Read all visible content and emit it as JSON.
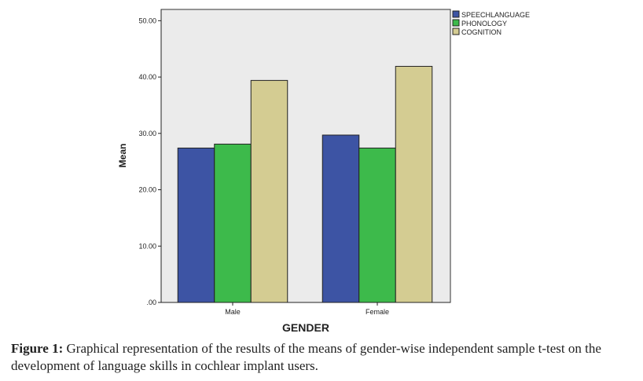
{
  "chart_data": {
    "type": "bar",
    "categories": [
      "Male",
      "Female"
    ],
    "series": [
      {
        "name": "SPEECHLANGUAGE",
        "values": [
          27.4,
          29.7
        ]
      },
      {
        "name": "PHONOLOGY",
        "values": [
          28.1,
          27.4
        ]
      },
      {
        "name": "COGNITION",
        "values": [
          39.4,
          41.9
        ]
      }
    ],
    "xlabel": "GENDER",
    "ylabel": "Mean",
    "ylim": [
      0,
      52
    ],
    "yticks": [
      0,
      10,
      20,
      30,
      40,
      50
    ],
    "ytick_labels": [
      ".00",
      "10.00",
      "20.00",
      "30.00",
      "40.00",
      "50.00"
    ],
    "legend_position": "top-right",
    "grid": false
  },
  "colors": {
    "plot_background": "#ebebeb",
    "series": [
      "#3d54a4",
      "#3dba4b",
      "#d4cc92"
    ],
    "axis": "#222222"
  },
  "caption": {
    "label": "Figure 1:",
    "text": " Graphical representation of the results of the means of gender-wise independent sample t-test on the development of language skills in cochlear implant users."
  }
}
